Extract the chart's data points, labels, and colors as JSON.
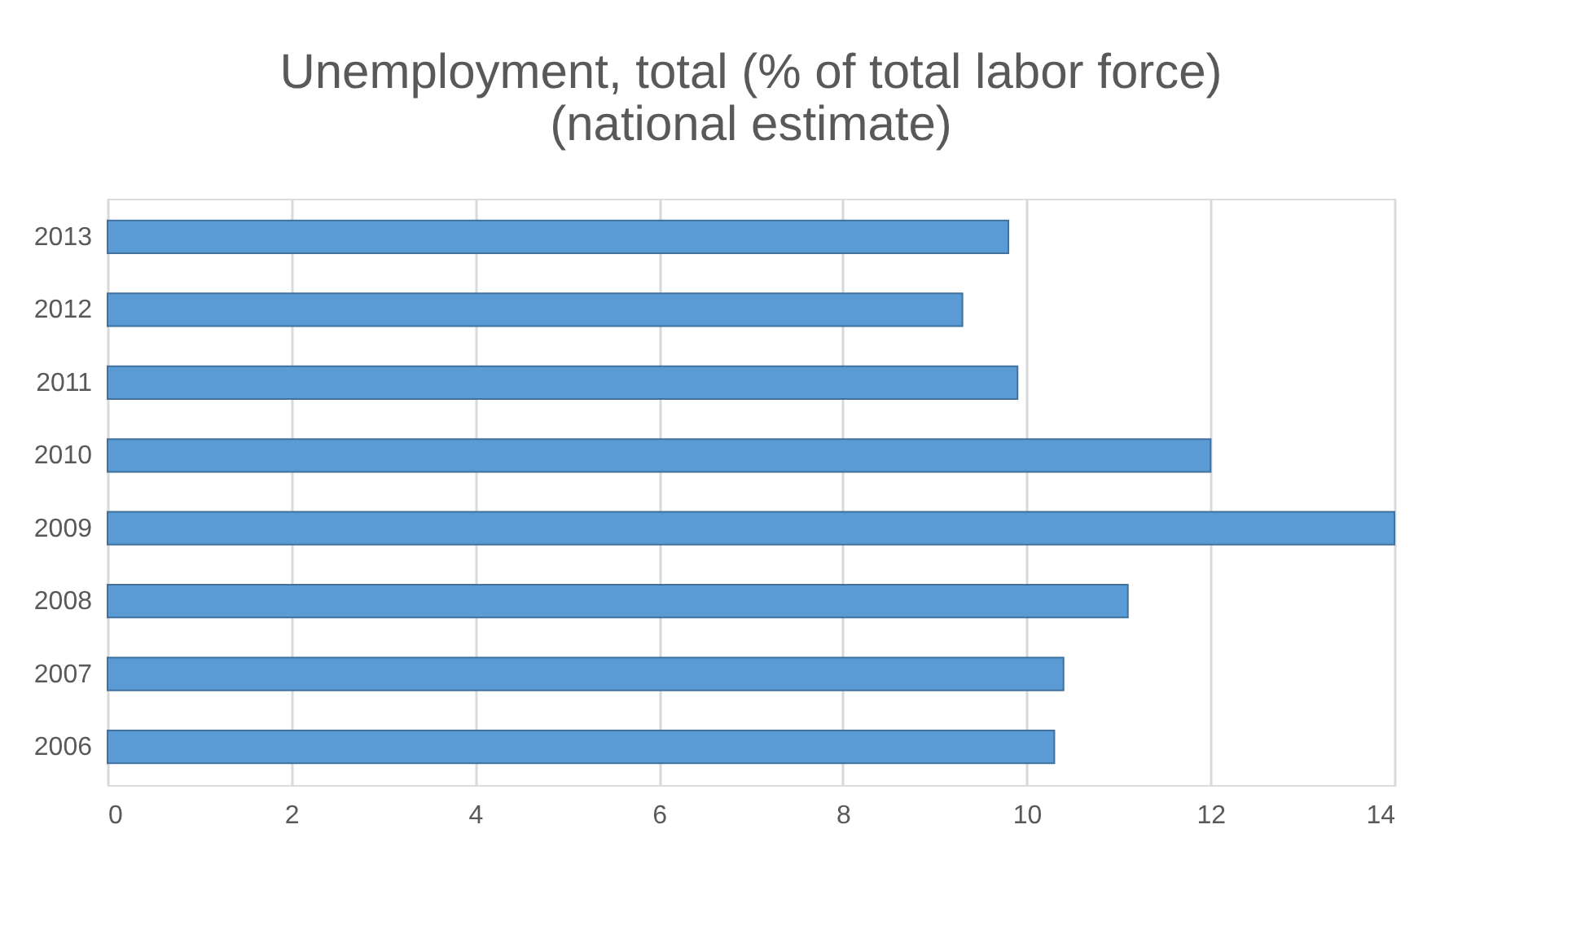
{
  "chart_data": {
    "type": "bar",
    "orientation": "horizontal",
    "title": [
      "Unemployment, total (% of total labor force)",
      "(national estimate)"
    ],
    "categories": [
      "2013",
      "2012",
      "2011",
      "2010",
      "2009",
      "2008",
      "2007",
      "2006"
    ],
    "values": [
      9.8,
      9.3,
      9.9,
      12.0,
      14.0,
      11.1,
      10.4,
      10.3
    ],
    "color": "#5b9bd5",
    "xlim": [
      0,
      14
    ],
    "xticks": [
      0,
      2,
      4,
      6,
      8,
      10,
      12,
      14
    ],
    "grid": "x"
  }
}
